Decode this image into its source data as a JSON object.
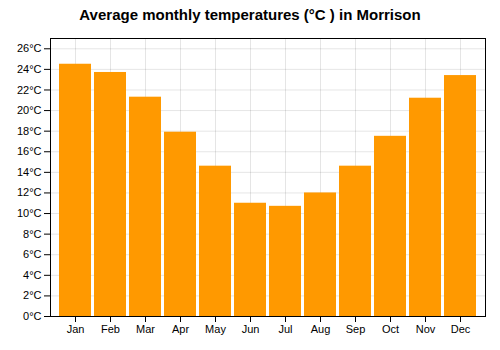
{
  "chart_data": {
    "type": "bar",
    "title": "Average monthly temperatures (°C ) in Morrison",
    "categories": [
      "Jan",
      "Feb",
      "Mar",
      "Apr",
      "May",
      "Jun",
      "Jul",
      "Aug",
      "Sep",
      "Oct",
      "Nov",
      "Dec"
    ],
    "values": [
      24.5,
      23.7,
      21.3,
      17.9,
      14.6,
      11.0,
      10.7,
      12.0,
      14.6,
      17.5,
      21.2,
      23.4
    ],
    "color": "#FF9900",
    "ylim": [
      0,
      27
    ],
    "yticks": [
      {
        "value": 0,
        "label": "0°C"
      },
      {
        "value": 2,
        "label": "2°C"
      },
      {
        "value": 4,
        "label": "4°C"
      },
      {
        "value": 6,
        "label": "6°C"
      },
      {
        "value": 8,
        "label": "8°C"
      },
      {
        "value": 10,
        "label": "10°C"
      },
      {
        "value": 12,
        "label": "12°C"
      },
      {
        "value": 14,
        "label": "14°C"
      },
      {
        "value": 16,
        "label": "16°C"
      },
      {
        "value": 18,
        "label": "18°C"
      },
      {
        "value": 20,
        "label": "20°C"
      },
      {
        "value": 22,
        "label": "22°C"
      },
      {
        "value": 24,
        "label": "24°C"
      },
      {
        "value": 26,
        "label": "26°C"
      }
    ],
    "grid": true
  }
}
